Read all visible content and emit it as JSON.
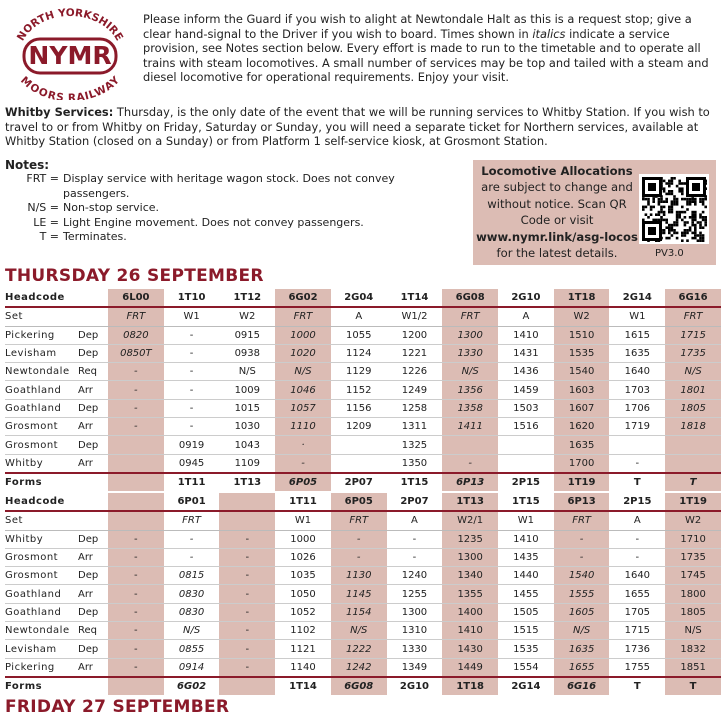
{
  "logo": {
    "top": "NORTH YORKSHIRE",
    "name": "NYMR",
    "bottom": "MOORS RAILWAY"
  },
  "intro": {
    "part1": "Please inform the Guard if you wish to alight at Newtondale Halt as this is a request stop; give a clear hand-signal to the Driver if you wish to board. Times shown in ",
    "italic": "italics",
    "part2": " indicate a service provision, see Notes section below. Every effort is made to run to the timetable and to operate all trains with steam locomotives. A small number of services may be top and tailed with a steam and diesel locomotive for operational requirements. Enjoy your visit."
  },
  "whitby": {
    "label": "Whitby Services:",
    "text": " Thursday, is the only date of the event that we will be running services to Whitby Station. If you wish to travel to or from Whitby on Friday, Saturday or Sunday, you will need a separate ticket for Northern services, available at Whitby Station (closed on a Sunday) or from Platform 1 self-service kiosk, at Grosmont Station."
  },
  "notes": {
    "title": "Notes:",
    "items": [
      {
        "code": "FRT =",
        "text": "Display service with heritage wagon stock. Does not convey passengers."
      },
      {
        "code": "N/S =",
        "text": "Non-stop service."
      },
      {
        "code": "LE =",
        "text": "Light Engine movement. Does not convey passengers."
      },
      {
        "code": "T =",
        "text": "Terminates."
      }
    ]
  },
  "loco": {
    "title": "Locomotive Allocations",
    "text": "are subject to change and without notice. Scan QR Code or visit",
    "link": "www.nymr.link/asg-locos",
    "after": "for the latest details.",
    "version": "PV3.0"
  },
  "tables": [
    {
      "title": "THURSDAY 26 SEPTEMBER",
      "header_label": "Headcode",
      "set_label": "Set",
      "forms_label": "Forms",
      "columns": [
        {
          "headcode": "6L00",
          "set": "FRT",
          "forms": null,
          "shaded": true,
          "italic": true
        },
        {
          "headcode": "1T10",
          "set": "W1",
          "forms": "1T11",
          "shaded": false,
          "italic": false
        },
        {
          "headcode": "1T12",
          "set": "W2",
          "forms": "1T13",
          "shaded": false,
          "italic": false
        },
        {
          "headcode": "6G02",
          "set": "FRT",
          "forms": "6P05",
          "shaded": true,
          "italic": true
        },
        {
          "headcode": "2G04",
          "set": "A",
          "forms": "2P07",
          "shaded": false,
          "italic": false
        },
        {
          "headcode": "1T14",
          "set": "W1/2",
          "forms": "1T15",
          "shaded": false,
          "italic": false
        },
        {
          "headcode": "6G08",
          "set": "FRT",
          "forms": "6P13",
          "shaded": true,
          "italic": true
        },
        {
          "headcode": "2G10",
          "set": "A",
          "forms": "2P15",
          "shaded": false,
          "italic": false
        },
        {
          "headcode": "1T18",
          "set": "W2",
          "forms": "1T19",
          "shaded": true,
          "italic": false
        },
        {
          "headcode": "2G14",
          "set": "W1",
          "forms": "T",
          "shaded": false,
          "italic": false
        },
        {
          "headcode": "6G16",
          "set": "FRT",
          "forms": "T",
          "shaded": true,
          "italic": true
        }
      ],
      "rows": [
        {
          "station": "Pickering",
          "type": "Dep",
          "times": [
            "0820",
            "-",
            "0915",
            "1000",
            "1055",
            "1200",
            "1300",
            "1410",
            "1510",
            "1615",
            "1715"
          ]
        },
        {
          "station": "Levisham",
          "type": "Dep",
          "times": [
            "0850T",
            "-",
            "0938",
            "1020",
            "1124",
            "1221",
            "1330",
            "1431",
            "1535",
            "1635",
            "1735"
          ]
        },
        {
          "station": "Newtondale",
          "type": "Req",
          "times": [
            "-",
            "-",
            "N/S",
            "N/S",
            "1129",
            "1226",
            "N/S",
            "1436",
            "1540",
            "1640",
            "N/S"
          ]
        },
        {
          "station": "Goathland",
          "type": "Arr",
          "times": [
            "-",
            "-",
            "1009",
            "1046",
            "1152",
            "1249",
            "1356",
            "1459",
            "1603",
            "1703",
            "1801"
          ]
        },
        {
          "station": "Goathland",
          "type": "Dep",
          "times": [
            "-",
            "-",
            "1015",
            "1057",
            "1156",
            "1258",
            "1358",
            "1503",
            "1607",
            "1706",
            "1805"
          ]
        },
        {
          "station": "Grosmont",
          "type": "Arr",
          "times": [
            "-",
            "-",
            "1030",
            "1110",
            "1209",
            "1311",
            "1411",
            "1516",
            "1620",
            "1719",
            "1818"
          ]
        },
        {
          "station": "Grosmont",
          "type": "Dep",
          "times": [
            null,
            "0919",
            "1043",
            "·",
            null,
            "1325",
            null,
            null,
            "1635",
            null,
            null
          ]
        },
        {
          "station": "Whitby",
          "type": "Arr",
          "times": [
            null,
            "0945",
            "1109",
            "-",
            null,
            "1350",
            "-",
            null,
            "1700",
            "-",
            null
          ]
        }
      ]
    },
    {
      "title": null,
      "header_label": "Headcode",
      "set_label": "Set",
      "forms_label": "Forms",
      "columns": [
        {
          "headcode": null,
          "set": null,
          "forms": null,
          "shaded": true,
          "italic": false
        },
        {
          "headcode": "6P01",
          "set": "FRT",
          "forms": "6G02",
          "shaded": false,
          "italic": true
        },
        {
          "headcode": null,
          "set": null,
          "forms": null,
          "shaded": true,
          "italic": false
        },
        {
          "headcode": "1T11",
          "set": "W1",
          "forms": "1T14",
          "shaded": false,
          "italic": false
        },
        {
          "headcode": "6P05",
          "set": "FRT",
          "forms": "6G08",
          "shaded": true,
          "italic": true
        },
        {
          "headcode": "2P07",
          "set": "A",
          "forms": "2G10",
          "shaded": false,
          "italic": false
        },
        {
          "headcode": "1T13",
          "set": "W2/1",
          "forms": "1T18",
          "shaded": true,
          "italic": false
        },
        {
          "headcode": "1T15",
          "set": "W1",
          "forms": "2G14",
          "shaded": false,
          "italic": false
        },
        {
          "headcode": "6P13",
          "set": "FRT",
          "forms": "6G16",
          "shaded": true,
          "italic": true
        },
        {
          "headcode": "2P15",
          "set": "A",
          "forms": "T",
          "shaded": false,
          "italic": false
        },
        {
          "headcode": "1T19",
          "set": "W2",
          "forms": "T",
          "shaded": true,
          "italic": false
        }
      ],
      "rows": [
        {
          "station": "Whitby",
          "type": "Dep",
          "times": [
            "-",
            "-",
            "-",
            "1000",
            "-",
            "-",
            "1235",
            "1410",
            "-",
            "-",
            "1710"
          ]
        },
        {
          "station": "Grosmont",
          "type": "Arr",
          "times": [
            "-",
            "-",
            "-",
            "1026",
            "-",
            "-",
            "1300",
            "1435",
            "-",
            "-",
            "1735"
          ]
        },
        {
          "station": "Grosmont",
          "type": "Dep",
          "times": [
            "-",
            "0815",
            "-",
            "1035",
            "1130",
            "1240",
            "1340",
            "1440",
            "1540",
            "1640",
            "1745"
          ]
        },
        {
          "station": "Goathland",
          "type": "Arr",
          "times": [
            "-",
            "0830",
            "-",
            "1050",
            "1145",
            "1255",
            "1355",
            "1455",
            "1555",
            "1655",
            "1800"
          ]
        },
        {
          "station": "Goathland",
          "type": "Dep",
          "times": [
            "-",
            "0830",
            "-",
            "1052",
            "1154",
            "1300",
            "1400",
            "1505",
            "1605",
            "1705",
            "1805"
          ]
        },
        {
          "station": "Newtondale",
          "type": "Req",
          "times": [
            "-",
            "N/S",
            "-",
            "1102",
            "N/S",
            "1310",
            "1410",
            "1515",
            "N/S",
            "1715",
            "N/S"
          ]
        },
        {
          "station": "Levisham",
          "type": "Dep",
          "times": [
            "-",
            "0855",
            "-",
            "1121",
            "1222",
            "1330",
            "1430",
            "1535",
            "1635",
            "1736",
            "1832"
          ]
        },
        {
          "station": "Pickering",
          "type": "Arr",
          "times": [
            "-",
            "0914",
            "-",
            "1140",
            "1242",
            "1349",
            "1449",
            "1554",
            "1655",
            "1755",
            "1851"
          ]
        }
      ]
    }
  ],
  "next_heading": "FRIDAY 27 SEPTEMBER"
}
